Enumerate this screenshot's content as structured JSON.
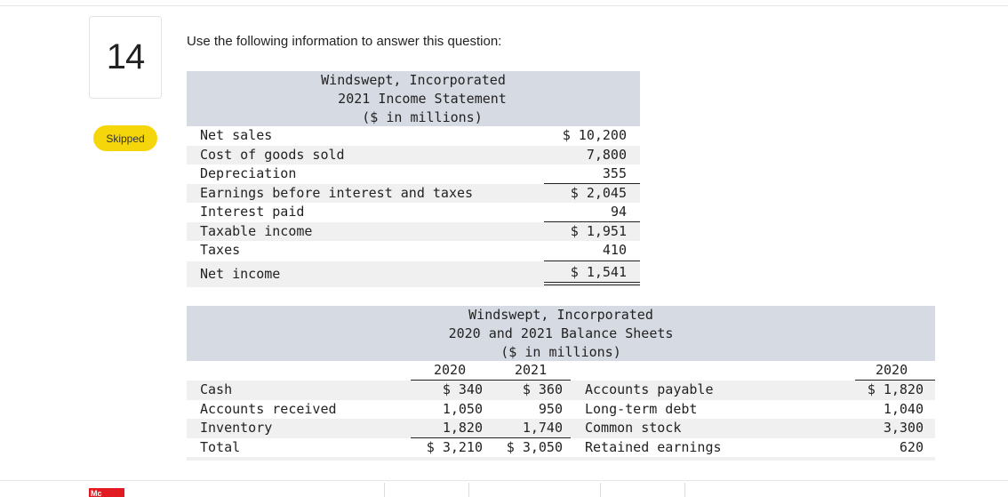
{
  "question": {
    "number": "14",
    "status": "Skipped",
    "prompt": "Use the following information to answer this question:"
  },
  "income_statement": {
    "title_lines": [
      "Windswept, Incorporated",
      "2021 Income Statement",
      "($ in millions)"
    ],
    "rows": [
      {
        "label": "Net sales",
        "value": "$ 10,200"
      },
      {
        "label": "Cost of goods sold",
        "value": "7,800"
      },
      {
        "label": "Depreciation",
        "value": "355"
      },
      {
        "label": "Earnings before interest and taxes",
        "value": "$ 2,045"
      },
      {
        "label": "Interest paid",
        "value": "94"
      },
      {
        "label": "Taxable income",
        "value": "$ 1,951"
      },
      {
        "label": "Taxes",
        "value": "410"
      },
      {
        "label": "Net income",
        "value": "$ 1,541"
      }
    ]
  },
  "balance_sheet": {
    "title_lines": [
      "Windswept, Incorporated",
      "2020 and 2021 Balance Sheets",
      "($ in millions)"
    ],
    "year_headers": {
      "left_2020": "2020",
      "left_2021": "2021",
      "right_2020": "2020"
    },
    "rows": [
      {
        "asset": "Cash",
        "a2020": "$ 340",
        "a2021": "$ 360",
        "liability": "Accounts payable",
        "l2020": "$ 1,820"
      },
      {
        "asset": "Accounts received",
        "a2020": "1,050",
        "a2021": "950",
        "liability": "Long-term debt",
        "l2020": "1,040"
      },
      {
        "asset": "Inventory",
        "a2020": "1,820",
        "a2021": "1,740",
        "liability": "Common stock",
        "l2020": "3,300"
      },
      {
        "asset": "Total",
        "a2020": "$ 3,210",
        "a2021": "$ 3,050",
        "liability": "Retained earnings",
        "l2020": "620"
      }
    ]
  },
  "footer": {
    "logo_text": "Mc"
  }
}
